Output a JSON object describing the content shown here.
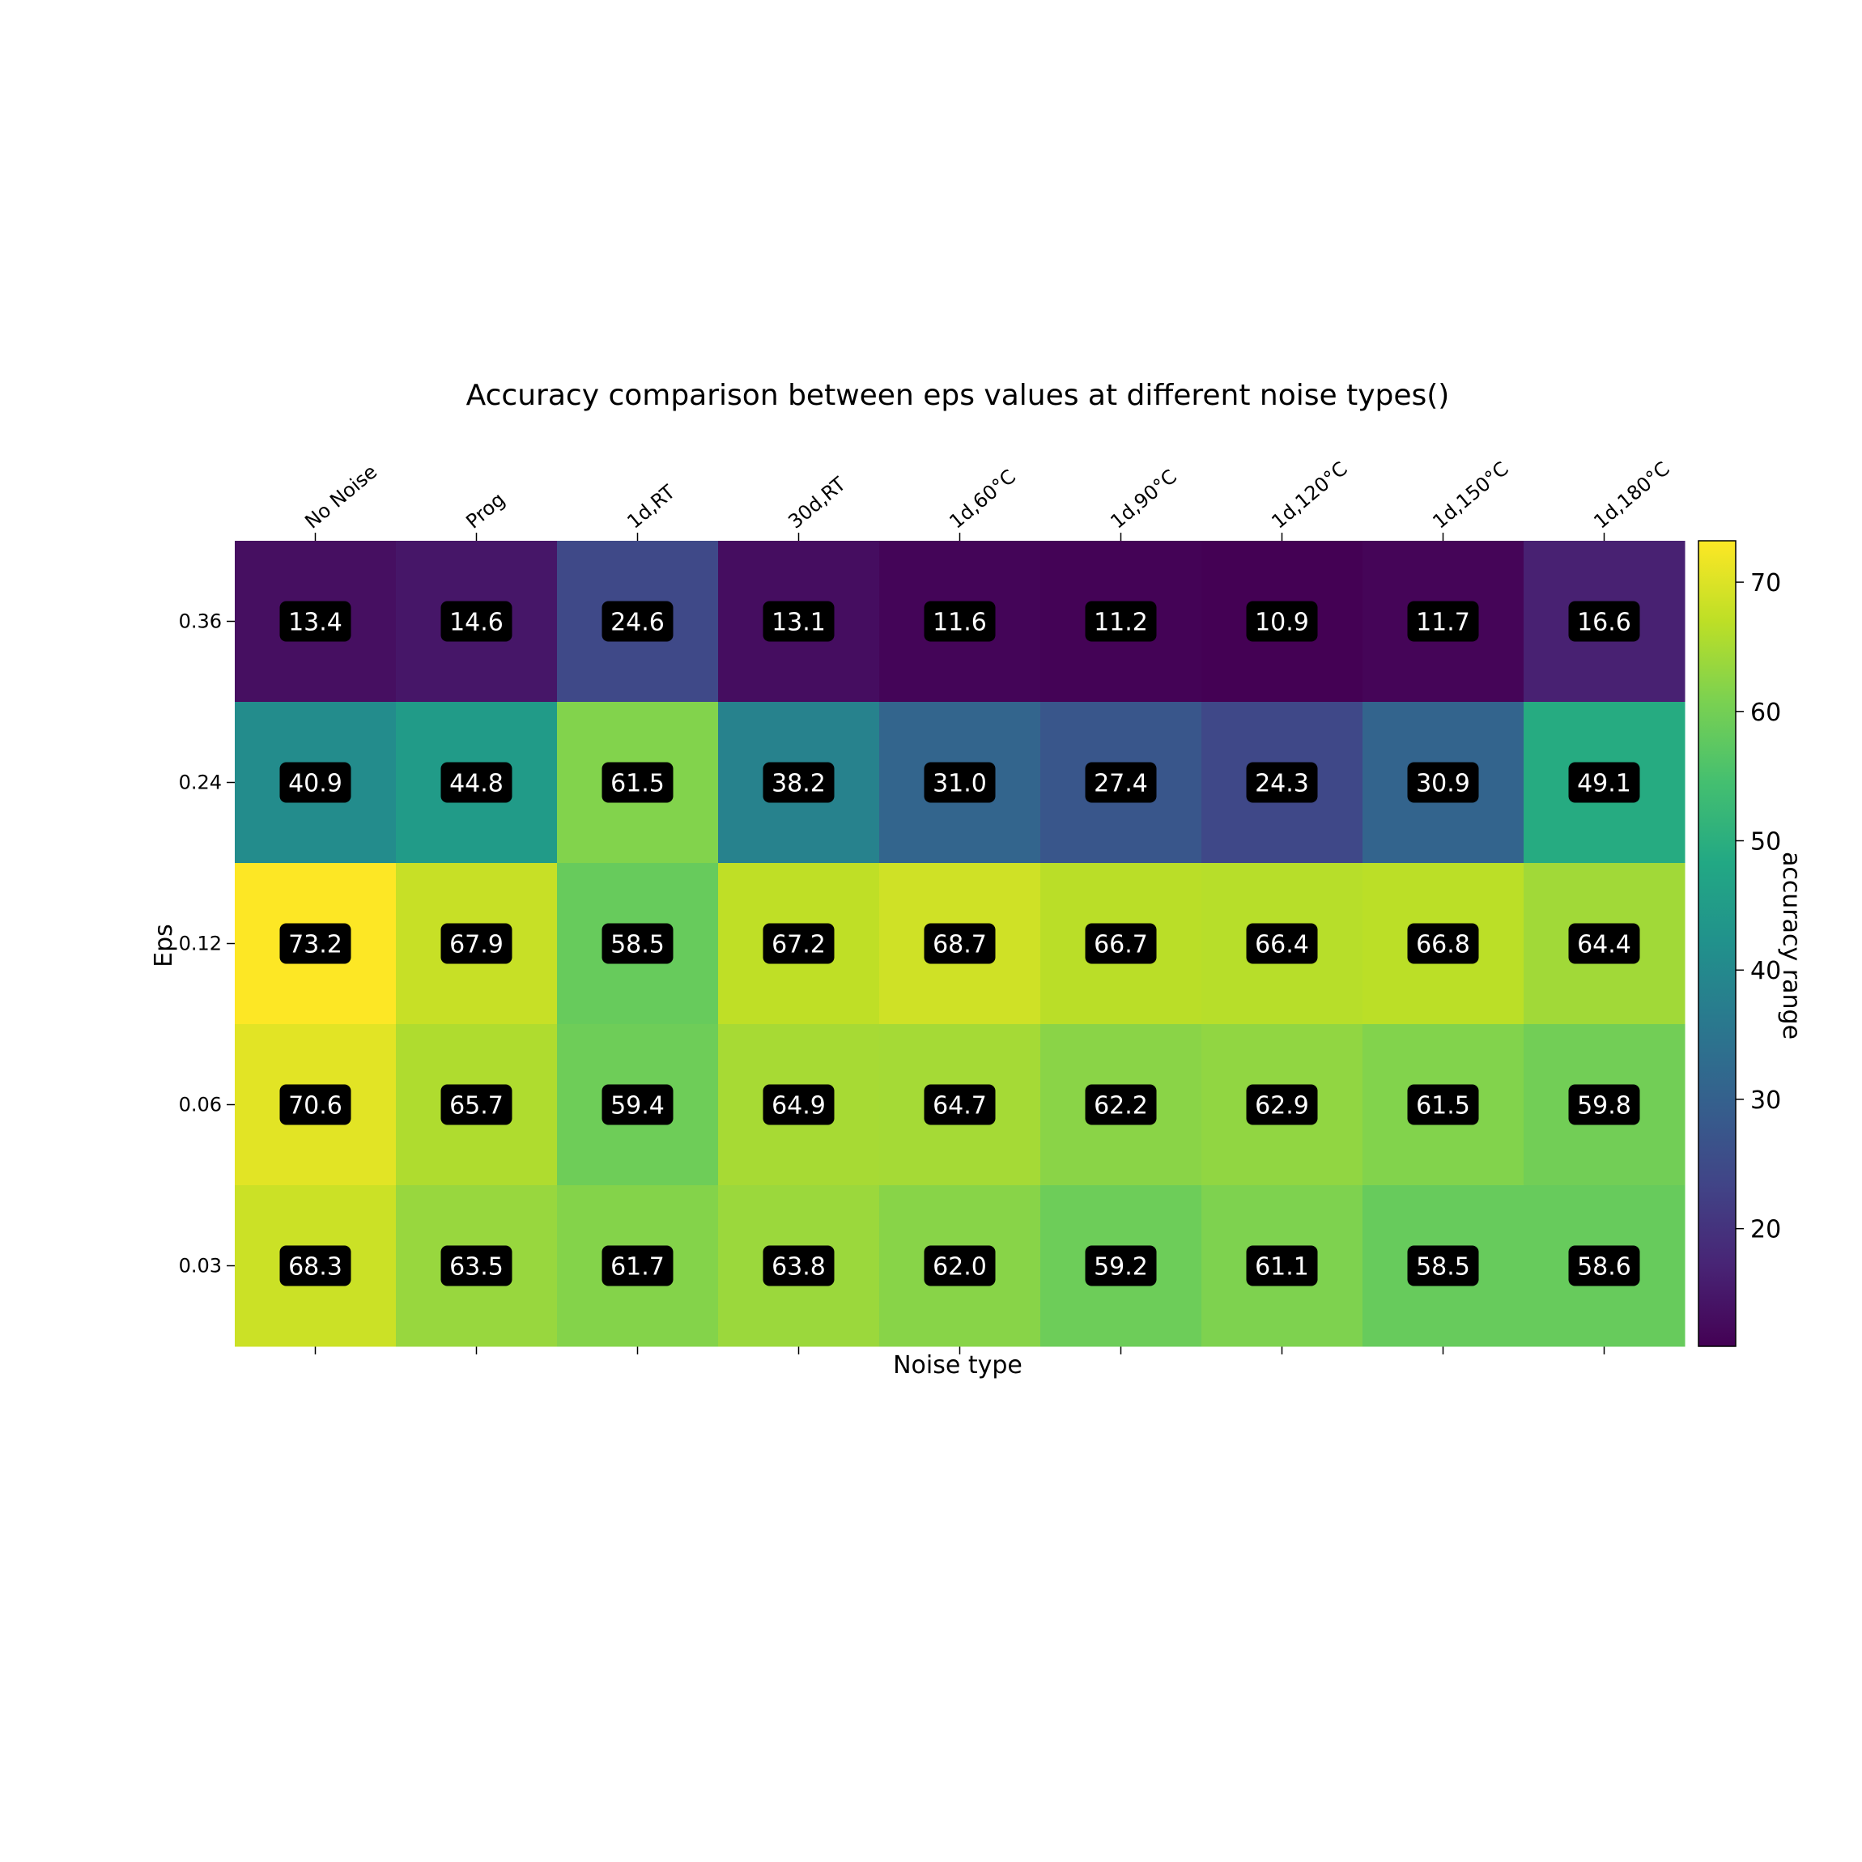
{
  "chart_data": {
    "type": "heatmap",
    "title": "Accuracy comparison between eps values at different noise types()",
    "xlabel": "Noise type",
    "ylabel": "Eps",
    "x_categories": [
      "No Noise",
      "Prog",
      "1d,RT",
      "30d,RT",
      "1d,60°C",
      "1d,90°C",
      "1d,120°C",
      "1d,150°C",
      "1d,180°C"
    ],
    "y_categories": [
      "0.36",
      "0.24",
      "0.12",
      "0.06",
      "0.03"
    ],
    "values": [
      [
        13.4,
        14.6,
        24.6,
        13.1,
        11.6,
        11.2,
        10.9,
        11.7,
        16.6
      ],
      [
        40.9,
        44.8,
        61.5,
        38.2,
        31.0,
        27.4,
        24.3,
        30.9,
        49.1
      ],
      [
        73.2,
        67.9,
        58.5,
        67.2,
        68.7,
        66.7,
        66.4,
        66.8,
        64.4
      ],
      [
        70.6,
        65.7,
        59.4,
        64.9,
        64.7,
        62.2,
        62.9,
        61.5,
        59.8
      ],
      [
        68.3,
        63.5,
        61.7,
        63.8,
        62.0,
        59.2,
        61.1,
        58.5,
        58.6
      ]
    ],
    "colorbar": {
      "label": "accuracy range",
      "ticks": [
        20,
        30,
        40,
        50,
        60,
        70
      ],
      "range": [
        10.9,
        73.2
      ],
      "colormap": "viridis"
    },
    "x_tick_position": "top",
    "grid": false
  }
}
